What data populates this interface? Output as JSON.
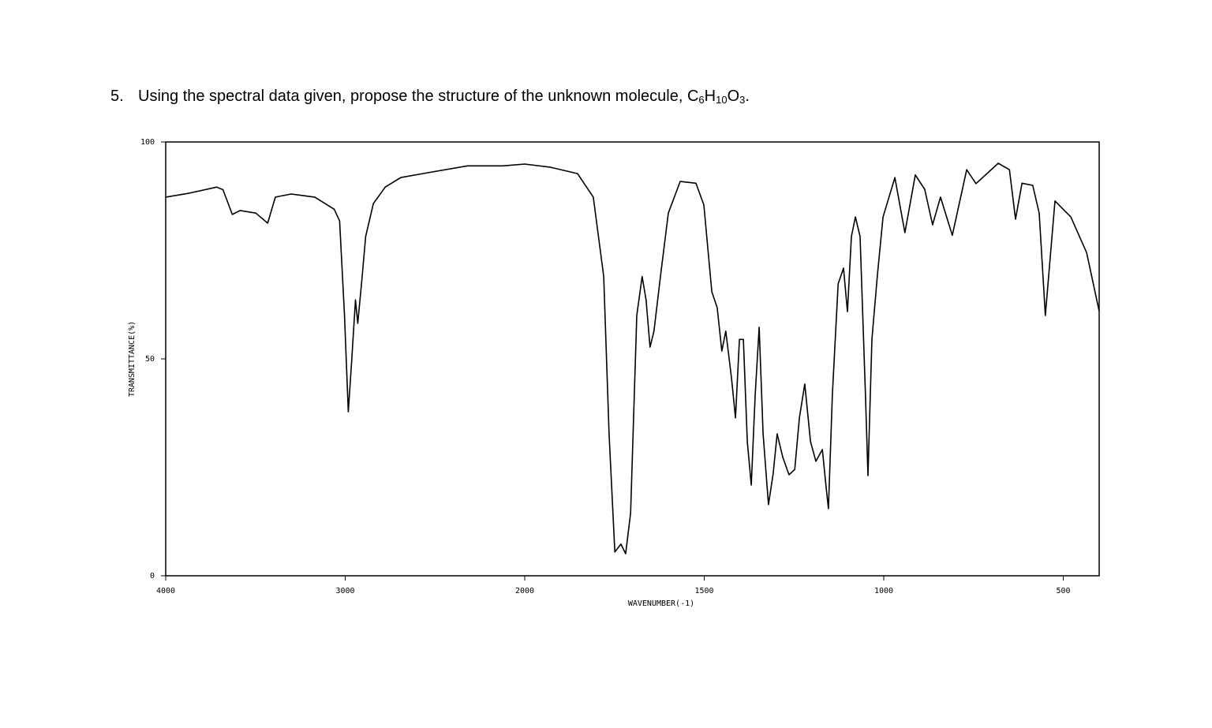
{
  "question": {
    "number": "5.",
    "prefix": "Using the spectral data given, propose the structure of the unknown molecule, ",
    "formula": [
      "C",
      "6",
      "H",
      "10",
      "O",
      "3"
    ],
    "suffix": "."
  },
  "chart_data": {
    "type": "line",
    "xlabel": "WAVENUMBER(-1)",
    "ylabel": "TRANSMITTANCE(%)",
    "xlim": [
      4000,
      400
    ],
    "x_scale_change": 2000,
    "ylim": [
      0,
      100
    ],
    "xticks": [
      4000,
      3000,
      2000,
      1500,
      1000,
      500
    ],
    "yticks": [
      0,
      50,
      100
    ],
    "color": "#000000",
    "x": [
      4000,
      3869,
      3716,
      3681,
      3629,
      3585,
      3498,
      3432,
      3389,
      3301,
      3170,
      3061,
      3031,
      3004,
      2983,
      2965,
      2943,
      2930,
      2908,
      2886,
      2843,
      2777,
      2690,
      2515,
      2319,
      2122,
      2000,
      1930,
      1853,
      1809,
      1780,
      1765,
      1749,
      1732,
      1719,
      1705,
      1688,
      1673,
      1662,
      1651,
      1640,
      1622,
      1600,
      1567,
      1523,
      1501,
      1479,
      1464,
      1451,
      1440,
      1424,
      1413,
      1402,
      1391,
      1380,
      1369,
      1358,
      1347,
      1336,
      1321,
      1308,
      1297,
      1281,
      1264,
      1248,
      1235,
      1220,
      1204,
      1189,
      1171,
      1160,
      1154,
      1143,
      1127,
      1112,
      1101,
      1090,
      1079,
      1066,
      1051,
      1044,
      1033,
      1018,
      1002,
      969,
      941,
      912,
      886,
      864,
      842,
      809,
      769,
      743,
      681,
      650,
      633,
      615,
      585,
      567,
      550,
      523,
      479,
      435,
      400
    ],
    "values": [
      87.3,
      88.2,
      89.6,
      89,
      83.3,
      84.2,
      83.6,
      81.3,
      87.3,
      88,
      87.3,
      84.5,
      81.8,
      60,
      37.8,
      49,
      63.6,
      58.2,
      67.8,
      78.2,
      85.8,
      89.6,
      91.8,
      93.1,
      94.5,
      94.5,
      94.9,
      94.2,
      92.7,
      87.3,
      69,
      32.7,
      5.5,
      7.3,
      5.1,
      14.5,
      60,
      69,
      63.6,
      52.7,
      56.4,
      69,
      83.6,
      90.9,
      90.5,
      85.5,
      65.5,
      61.8,
      51.8,
      56.4,
      45.5,
      36.4,
      54.5,
      54.5,
      30.9,
      20.9,
      41.8,
      57.3,
      32.7,
      16.4,
      23.6,
      32.7,
      27.3,
      23.3,
      24.5,
      36.4,
      44.2,
      30.9,
      26.4,
      29.1,
      20,
      15.5,
      41.8,
      67.3,
      70.9,
      60.9,
      78.2,
      82.7,
      78.2,
      41.8,
      23.1,
      54.5,
      69,
      82.7,
      91.8,
      79.1,
      92.4,
      89.1,
      80.9,
      87.3,
      78.5,
      93.6,
      90.4,
      95.1,
      93.6,
      82.2,
      90.5,
      90,
      83.6,
      60,
      86.4,
      82.7,
      74.5,
      61
    ]
  }
}
